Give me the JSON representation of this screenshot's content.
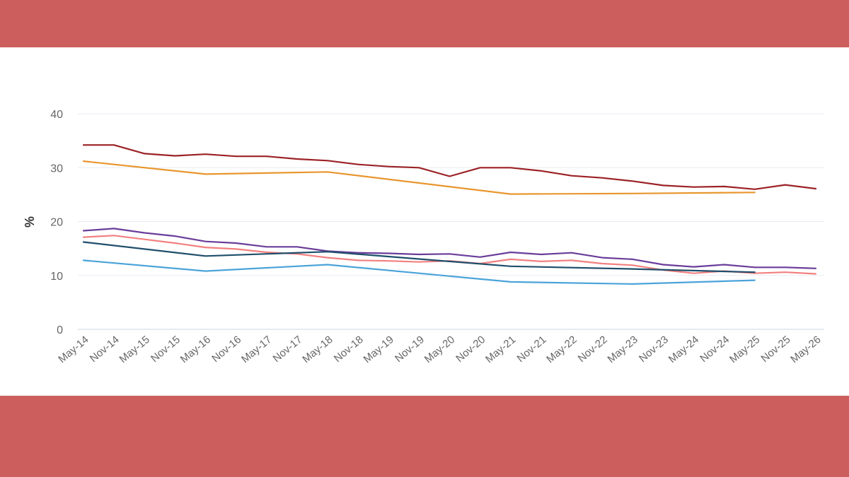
{
  "frame": {
    "band_color": "#cc5f5d"
  },
  "chart_data": {
    "type": "line",
    "ylabel": "%",
    "xlabel": "",
    "ylim": [
      0,
      40
    ],
    "yticks": [
      0,
      10,
      20,
      30,
      40
    ],
    "grid": true,
    "legend": "none",
    "categories": [
      "May-14",
      "Nov-14",
      "May-15",
      "Nov-15",
      "May-16",
      "Nov-16",
      "May-17",
      "Nov-17",
      "May-18",
      "Nov-18",
      "May-19",
      "Nov-19",
      "May-20",
      "Nov-20",
      "May-21",
      "Nov-21",
      "May-22",
      "Nov-22",
      "May-23",
      "Nov-23",
      "May-24",
      "Nov-24",
      "May-25",
      "Nov-25",
      "May-26"
    ],
    "series": [
      {
        "color": "#9b2226",
        "values": [
          34.2,
          34.2,
          32.6,
          32.2,
          32.5,
          32.1,
          32.1,
          31.6,
          31.3,
          30.6,
          30.2,
          30.0,
          28.4,
          30.0,
          30.0,
          29.4,
          28.5,
          28.1,
          27.5,
          26.7,
          26.4,
          26.5,
          26.0,
          26.8,
          26.1
        ]
      },
      {
        "color": "#e8962e",
        "values": [
          31.2,
          null,
          null,
          null,
          28.8,
          null,
          null,
          null,
          29.2,
          null,
          null,
          null,
          null,
          null,
          25.1,
          null,
          null,
          null,
          25.2,
          null,
          null,
          null,
          25.4,
          null,
          null
        ]
      },
      {
        "color": "#6a3d9a",
        "values": [
          18.3,
          18.7,
          17.9,
          17.3,
          16.3,
          16.0,
          15.3,
          15.3,
          14.5,
          14.2,
          14.1,
          13.9,
          14.0,
          13.4,
          14.3,
          13.9,
          14.2,
          13.3,
          13.0,
          12.0,
          11.6,
          12.0,
          11.5,
          11.5,
          11.3
        ]
      },
      {
        "color": "#f28080",
        "values": [
          17.1,
          17.4,
          16.7,
          16.0,
          15.2,
          14.9,
          14.3,
          14.0,
          13.3,
          12.8,
          12.7,
          12.5,
          12.7,
          12.2,
          13.0,
          12.6,
          12.8,
          12.2,
          11.9,
          11.0,
          10.4,
          10.8,
          10.4,
          10.6,
          10.3
        ]
      },
      {
        "color": "#1f4e6b",
        "values": [
          16.2,
          null,
          null,
          null,
          13.6,
          null,
          null,
          null,
          14.4,
          null,
          null,
          null,
          null,
          null,
          11.7,
          null,
          null,
          null,
          11.2,
          null,
          null,
          null,
          10.6,
          null,
          null
        ]
      },
      {
        "color": "#4ba3d9",
        "values": [
          12.8,
          null,
          null,
          null,
          10.8,
          null,
          null,
          null,
          12.0,
          null,
          null,
          null,
          null,
          null,
          8.8,
          null,
          null,
          null,
          8.4,
          null,
          null,
          null,
          9.1,
          null,
          null
        ]
      }
    ]
  }
}
